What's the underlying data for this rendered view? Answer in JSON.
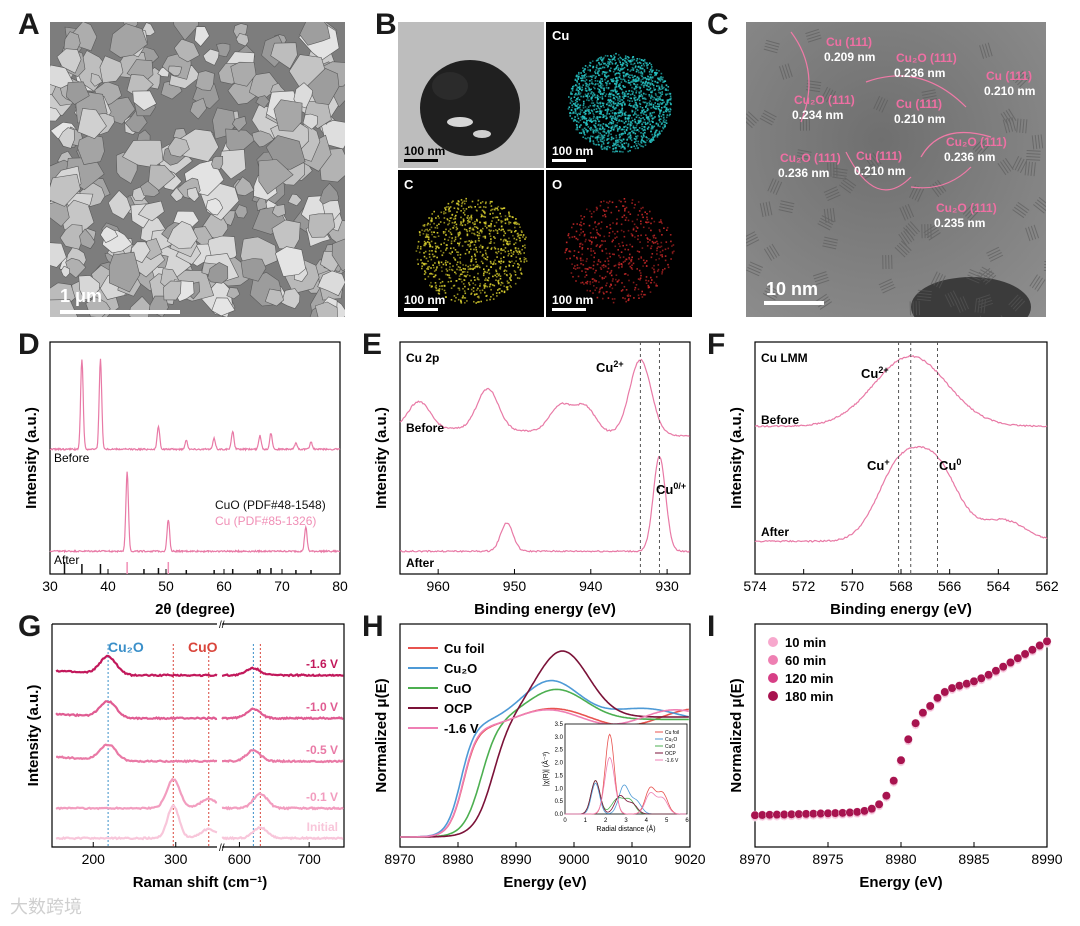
{
  "panels": {
    "A": {
      "label": "A",
      "scalebar": "1 μm"
    },
    "B": {
      "label": "B",
      "maps": [
        {
          "element": "",
          "scalebar": "100 nm",
          "color": "#3a3a3a"
        },
        {
          "element": "Cu",
          "scalebar": "100 nm",
          "color": "#27c4c4"
        },
        {
          "element": "C",
          "scalebar": "100 nm",
          "color": "#d9cf2e"
        },
        {
          "element": "O",
          "scalebar": "100 nm",
          "color": "#c62828"
        }
      ]
    },
    "C": {
      "label": "C",
      "scalebar": "10 nm",
      "annotations": [
        {
          "phase": "Cu (111)",
          "d": "0.209 nm"
        },
        {
          "phase": "Cu₂O (111)",
          "d": "0.236 nm"
        },
        {
          "phase": "Cu (111)",
          "d": "0.210 nm"
        },
        {
          "phase": "Cu₂O (111)",
          "d": "0.234 nm"
        },
        {
          "phase": "Cu (111)",
          "d": "0.210 nm"
        },
        {
          "phase": "Cu₂O (111)",
          "d": "0.236 nm"
        },
        {
          "phase": "Cu₂O (111)",
          "d": "0.236 nm"
        },
        {
          "phase": "Cu (111)",
          "d": "0.210 nm"
        },
        {
          "phase": "Cu₂O (111)",
          "d": "0.235 nm"
        }
      ]
    },
    "D": {
      "label": "D"
    },
    "E": {
      "label": "E"
    },
    "F": {
      "label": "F"
    },
    "G": {
      "label": "G"
    },
    "H": {
      "label": "H"
    },
    "I": {
      "label": "I"
    }
  },
  "watermark": "大数跨境",
  "chart_data": [
    {
      "panel": "D",
      "type": "line",
      "xlabel": "2θ (degree)",
      "ylabel": "Intensity (a.u.)",
      "xlim": [
        30,
        80
      ],
      "xticks": [
        30,
        40,
        50,
        60,
        70,
        80
      ],
      "series": [
        {
          "name": "Before",
          "color": "#e87aa6",
          "peaks": [
            [
              35.5,
              1.0
            ],
            [
              38.7,
              1.0
            ],
            [
              48.7,
              0.25
            ],
            [
              53.5,
              0.1
            ],
            [
              58.3,
              0.12
            ],
            [
              61.5,
              0.2
            ],
            [
              66.2,
              0.15
            ],
            [
              68.1,
              0.18
            ],
            [
              72.4,
              0.07
            ],
            [
              75.0,
              0.08
            ]
          ]
        },
        {
          "name": "After",
          "color": "#e87aa6",
          "peaks": [
            [
              43.3,
              1.0
            ],
            [
              50.4,
              0.4
            ],
            [
              74.1,
              0.3
            ]
          ]
        }
      ],
      "reference_text": [
        "CuO (PDF#48-1548)",
        "Cu (PDF#85-1326)"
      ],
      "reference_colors": [
        "#111111",
        "#f08fb6"
      ],
      "reference_lines_cuo": [
        32.5,
        35.5,
        38.7,
        46.2,
        48.7,
        53.5,
        58.3,
        61.5,
        65.8,
        66.2,
        68.1,
        72.4,
        75.0
      ],
      "reference_lines_cu": [
        43.3,
        50.4
      ]
    },
    {
      "panel": "E",
      "type": "line",
      "xlabel": "Binding energy (eV)",
      "ylabel": "Intensity (a.u.)",
      "xlim": [
        965,
        927
      ],
      "xticks": [
        960,
        950,
        940,
        930
      ],
      "annotations": [
        "Cu 2p",
        "Before",
        "After"
      ],
      "peak_labels": [
        {
          "base": "Cu",
          "sup": "2+"
        },
        {
          "base": "Cu",
          "sup": "0/+"
        }
      ],
      "dashed_lines": [
        933.5,
        931.0
      ],
      "series": [
        {
          "name": "Before",
          "peaks": [
            [
              962.5,
              0.35
            ],
            [
              953.5,
              0.55
            ],
            [
              944,
              0.35
            ],
            [
              940.8,
              0.35
            ],
            [
              933.5,
              1.0
            ]
          ]
        },
        {
          "name": "After",
          "peaks": [
            [
              951,
              0.3
            ],
            [
              931,
              1.0
            ]
          ]
        }
      ]
    },
    {
      "panel": "F",
      "type": "line",
      "xlabel": "Binding energy (eV)",
      "ylabel": "Intensity (a.u.)",
      "xlim": [
        574,
        562
      ],
      "xticks": [
        574,
        572,
        570,
        568,
        566,
        564,
        562
      ],
      "annotations": [
        "Cu LMM",
        "Before",
        "After"
      ],
      "peak_labels": [
        {
          "base": "Cu",
          "sup": "2+"
        },
        {
          "base": "Cu",
          "sup": "+"
        },
        {
          "base": "Cu",
          "sup": "0"
        }
      ],
      "dashed_lines": [
        568.1,
        567.6,
        566.5
      ],
      "series": [
        {
          "name": "Before",
          "peaks": [
            [
              567.6,
              1.0
            ]
          ]
        },
        {
          "name": "After",
          "peaks": [
            [
              568.1,
              1.0
            ],
            [
              566.5,
              1.0
            ],
            [
              563.8,
              0.3
            ]
          ]
        }
      ]
    },
    {
      "panel": "G",
      "type": "line",
      "xlabel": "Raman shift (cm⁻¹)",
      "ylabel": "Intensity (a.u.)",
      "x_break": [
        350,
        575
      ],
      "xticks": [
        200,
        300,
        600,
        700
      ],
      "phase_labels": [
        {
          "text": "Cu₂O",
          "color": "#3a8fc9"
        },
        {
          "text": "CuO",
          "color": "#d9453b"
        }
      ],
      "dashed_lines_cu2o": [
        218,
        620
      ],
      "dashed_lines_cuo": [
        297,
        340,
        630
      ],
      "series": [
        {
          "name": "-1.6 V",
          "color": "#c2185b"
        },
        {
          "name": "-1.0 V",
          "color": "#e05c92"
        },
        {
          "name": "-0.5 V",
          "color": "#e97aa6"
        },
        {
          "name": "-0.1 V",
          "color": "#f29dbf"
        },
        {
          "name": "Initial",
          "color": "#f8c6da"
        }
      ]
    },
    {
      "panel": "H",
      "type": "line",
      "xlabel": "Energy (eV)",
      "ylabel": "Normalized μ(E)",
      "xlim": [
        8970,
        9020
      ],
      "xticks": [
        8970,
        8980,
        8990,
        9000,
        9010,
        9020
      ],
      "series": [
        {
          "name": "Cu foil",
          "color": "#e8534f"
        },
        {
          "name": "Cu₂O",
          "color": "#4e9ad6"
        },
        {
          "name": "CuO",
          "color": "#4caf50"
        },
        {
          "name": "OCP",
          "color": "#7b1238"
        },
        {
          "name": "-1.6 V",
          "color": "#ef7fb4"
        }
      ],
      "inset": {
        "xlabel": "Radial distance (Å)",
        "ylabel": "|χ(R)| (Å⁻³)",
        "xlim": [
          0,
          6
        ],
        "ylim": [
          0,
          3.5
        ],
        "xticks": [
          0,
          1,
          2,
          3,
          4,
          5,
          6
        ],
        "yticks": [
          0.0,
          0.5,
          1.0,
          1.5,
          2.0,
          2.5,
          3.0,
          3.5
        ],
        "legend": [
          "Cu foil",
          "Cu₂O",
          "CuO",
          "OCP",
          "-1.6 V"
        ]
      }
    },
    {
      "panel": "I",
      "type": "scatter",
      "xlabel": "Energy (eV)",
      "ylabel": "Normalized μ(E)",
      "xlim": [
        8970,
        8990
      ],
      "xticks": [
        8970,
        8975,
        8980,
        8985,
        8990
      ],
      "series": [
        {
          "name": "10 min",
          "color": "#f7a8cd"
        },
        {
          "name": "60 min",
          "color": "#ee7fb2"
        },
        {
          "name": "120 min",
          "color": "#d73f86"
        },
        {
          "name": "180 min",
          "color": "#a8134f"
        }
      ]
    }
  ]
}
